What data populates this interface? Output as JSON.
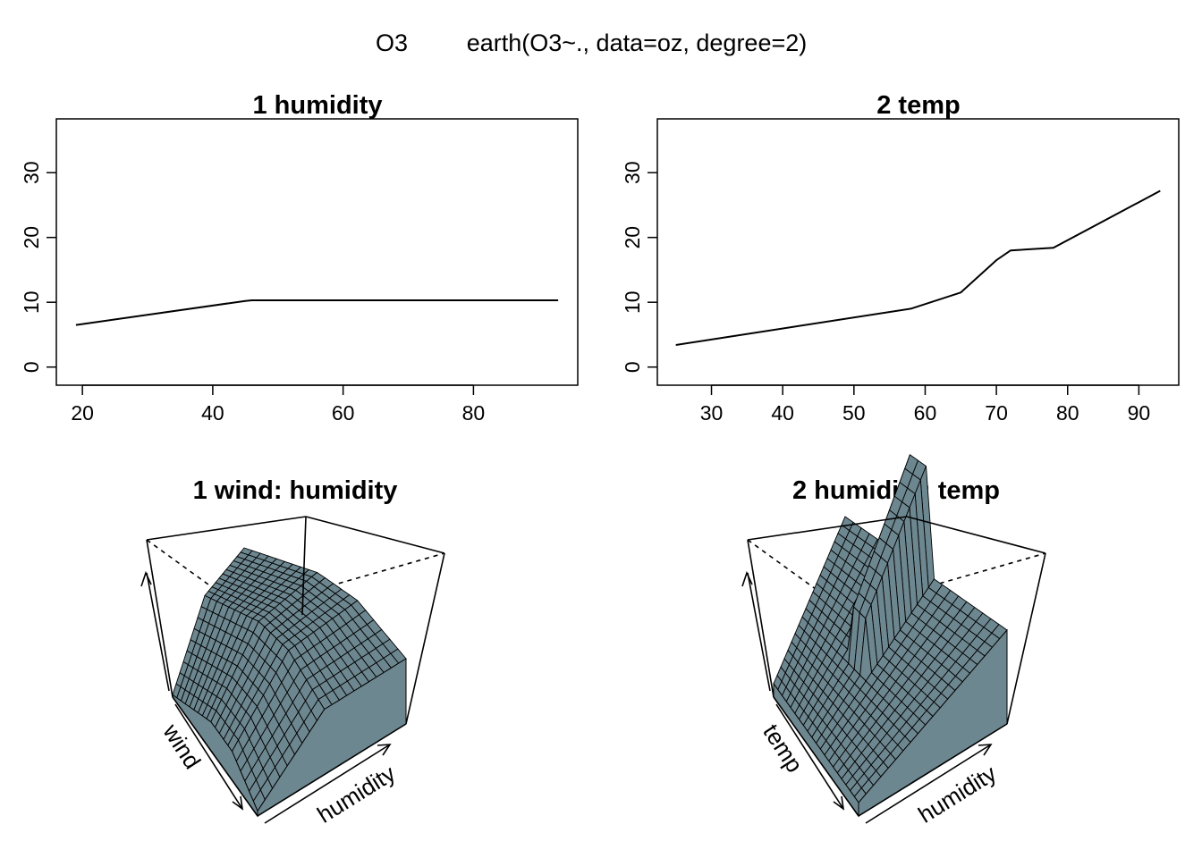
{
  "figure": {
    "response": "O3",
    "call": "earth(O3~., data=oz, degree=2)"
  },
  "chart_data": [
    {
      "type": "line",
      "title": "1  humidity",
      "xlabel": "",
      "ylabel": "",
      "xlim": [
        16,
        96
      ],
      "ylim": [
        -2.8,
        38.3
      ],
      "xticks": [
        20,
        40,
        60,
        80
      ],
      "yticks": [
        0,
        10,
        20,
        30
      ],
      "x": [
        19,
        45,
        46,
        93
      ],
      "y": [
        6.5,
        10.2,
        10.3,
        10.3
      ],
      "grid": false
    },
    {
      "type": "line",
      "title": "2  temp",
      "xlabel": "",
      "ylabel": "",
      "xlim": [
        22.4,
        95.6
      ],
      "ylim": [
        -2.8,
        38.3
      ],
      "xticks": [
        30,
        40,
        50,
        60,
        70,
        80,
        90
      ],
      "yticks": [
        0,
        10,
        20,
        30
      ],
      "x": [
        25,
        58,
        65,
        70,
        72,
        78,
        93
      ],
      "y": [
        3.4,
        9.0,
        11.5,
        16.5,
        18.0,
        18.4,
        27.2
      ],
      "grid": false
    },
    {
      "type": "surface",
      "title": "1 wind: humidity",
      "xlabel": "wind",
      "ylabel": "humidity",
      "grid": false
    },
    {
      "type": "surface",
      "title": "2 humidity: temp",
      "xlabel": "temp",
      "ylabel": "humidity",
      "grid": false
    }
  ],
  "colors": {
    "surface": "#6d8790",
    "mesh": "#000000"
  }
}
